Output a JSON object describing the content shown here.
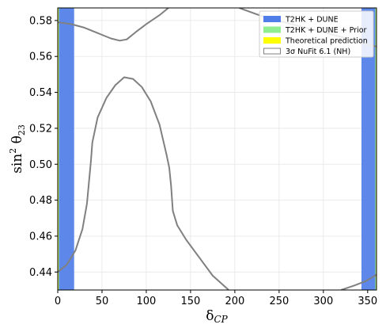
{
  "chart_data": {
    "type": "area",
    "xlabel": "δ_CP",
    "ylabel": "sin² θ₂₃",
    "xlim": [
      0,
      360
    ],
    "ylim": [
      0.43,
      0.587
    ],
    "xticks": [
      0,
      50,
      100,
      150,
      200,
      250,
      300,
      350
    ],
    "yticks": [
      0.44,
      0.46,
      0.48,
      0.5,
      0.52,
      0.54,
      0.56,
      0.58
    ],
    "grid": true,
    "legend_position": "top-right",
    "legend": [
      {
        "label": "T2HK + DUNE",
        "color": "#4f7ee8",
        "kind": "fill"
      },
      {
        "label": "T2HK + DUNE + Prior",
        "color": "#90ee90",
        "kind": "fill"
      },
      {
        "label": "Theoretical prediction",
        "color": "#ffff00",
        "kind": "fill"
      },
      {
        "label": "3σ NuFit 6.1 (NH)",
        "color": "#808080",
        "kind": "outline"
      }
    ],
    "series": [
      {
        "type": "region",
        "color": "#4f7ee8",
        "regions": [
          {
            "x": [
              0,
              18.5
            ],
            "y": [
              0.43,
              0.587
            ]
          },
          {
            "x": [
              343,
              360
            ],
            "y": [
              0.43,
              0.587
            ]
          }
        ]
      },
      {
        "type": "band",
        "color": "#90ee90",
        "regions": [
          {
            "x": [
              0,
              1.4
            ],
            "y": [
              0.43,
              0.587
            ]
          },
          {
            "x": [
              358.6,
              360
            ],
            "y": [
              0.43,
              0.587
            ]
          }
        ]
      },
      {
        "type": "band",
        "color": "#ffff00",
        "regions": [
          {
            "x": [
              0,
              0.6
            ],
            "y": [
              0.43,
              0.587
            ]
          },
          {
            "x": [
              359.4,
              360
            ],
            "y": [
              0.43,
              0.587
            ]
          }
        ]
      },
      {
        "type": "contour",
        "color": "#808080",
        "curves": [
          {
            "points": [
              [
                0,
                0.579
              ],
              [
                15,
                0.578
              ],
              [
                30,
                0.576
              ],
              [
                45,
                0.573
              ],
              [
                60,
                0.57
              ],
              [
                70,
                0.5688
              ],
              [
                78,
                0.5695
              ],
              [
                88,
                0.5735
              ],
              [
                100,
                0.578
              ],
              [
                115,
                0.583
              ],
              [
                125,
                0.587
              ]
            ]
          },
          {
            "points": [
              [
                0,
                0.44
              ],
              [
                10,
                0.444
              ],
              [
                20,
                0.452
              ],
              [
                28,
                0.464
              ],
              [
                33,
                0.478
              ],
              [
                36,
                0.494
              ],
              [
                37.5,
                0.502
              ],
              [
                39,
                0.512
              ],
              [
                45,
                0.526
              ],
              [
                55,
                0.537
              ],
              [
                65,
                0.544
              ],
              [
                75,
                0.5484
              ],
              [
                85,
                0.5475
              ],
              [
                95,
                0.543
              ],
              [
                105,
                0.535
              ],
              [
                115,
                0.522
              ],
              [
                123,
                0.505
              ],
              [
                126,
                0.498
              ],
              [
                128,
                0.488
              ],
              [
                130,
                0.474
              ],
              [
                135,
                0.466
              ],
              [
                145,
                0.458
              ],
              [
                160,
                0.448
              ],
              [
                175,
                0.438
              ],
              [
                193,
                0.43
              ]
            ]
          },
          {
            "points": [
              [
                205,
                0.587
              ],
              [
                230,
                0.5825
              ],
              [
                260,
                0.5785
              ],
              [
                300,
                0.5735
              ],
              [
                330,
                0.5695
              ],
              [
                345,
                0.5672
              ],
              [
                360,
                0.5655
              ]
            ]
          },
          {
            "points": [
              [
                320,
                0.43
              ],
              [
                335,
                0.4325
              ],
              [
                348,
                0.435
              ],
              [
                360,
                0.4385
              ]
            ]
          }
        ]
      }
    ]
  }
}
